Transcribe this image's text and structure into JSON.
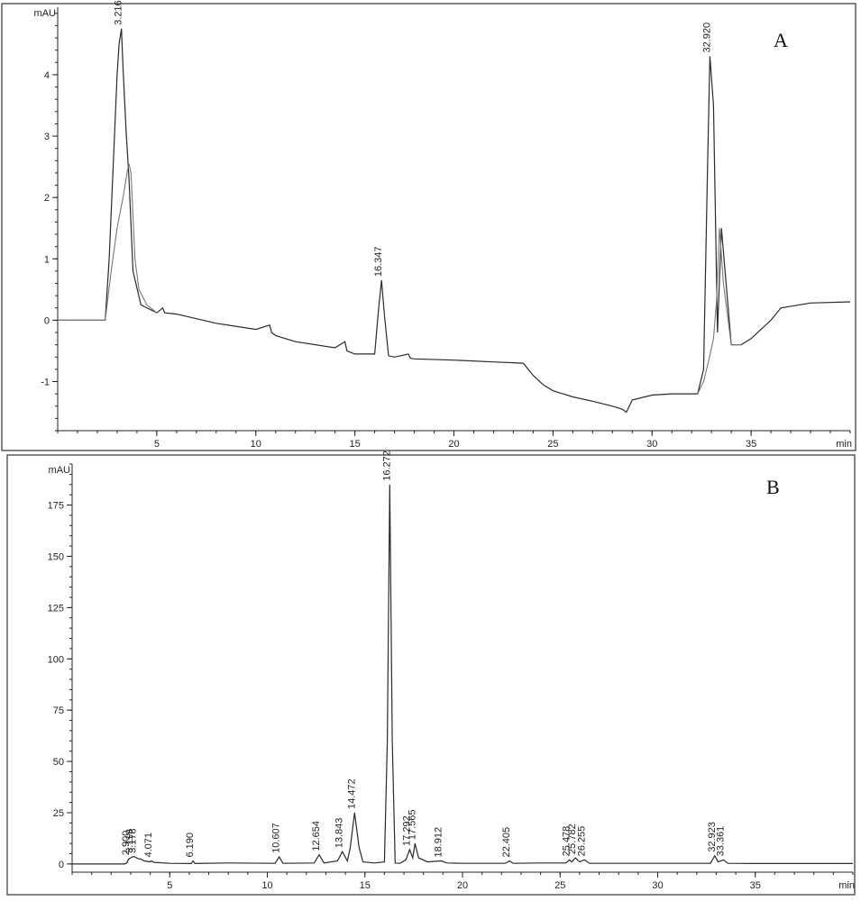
{
  "chart_data": [
    {
      "type": "line",
      "panel": "A",
      "ylabel": "mAU",
      "xlabel": "min",
      "xlim": [
        0,
        40
      ],
      "ylim": [
        -1.8,
        5.1
      ],
      "x_ticks": [
        5,
        10,
        15,
        20,
        25,
        30,
        35
      ],
      "y_ticks": [
        -1,
        0,
        1,
        2,
        3,
        4
      ],
      "grid": false,
      "series": [
        {
          "x": [
            0,
            2.4,
            2.6,
            2.8,
            3.0,
            3.1,
            3.216,
            3.3,
            3.45,
            3.6,
            3.8,
            4.2,
            5,
            5.3,
            5.4,
            6,
            8,
            10,
            10.7,
            10.8,
            11,
            12,
            14,
            14.5,
            14.6,
            15,
            16.0,
            16.2,
            16.347,
            16.5,
            16.7,
            17,
            17.7,
            17.8,
            18,
            20,
            22,
            23.5,
            24,
            24.5,
            25,
            25.5,
            26,
            27,
            28,
            28.5,
            28.7,
            29,
            30,
            31,
            32.3,
            32.6,
            32.8,
            32.92,
            33.1,
            33.3,
            33.5,
            34,
            34.5,
            35,
            35.5,
            36,
            36.5,
            38,
            40
          ],
          "y": [
            0.0,
            0.0,
            1.0,
            2.5,
            4.0,
            4.5,
            4.75,
            4.1,
            3.1,
            2.3,
            0.8,
            0.25,
            0.12,
            0.2,
            0.12,
            0.1,
            -0.05,
            -0.15,
            -0.08,
            -0.2,
            -0.25,
            -0.35,
            -0.45,
            -0.35,
            -0.5,
            -0.55,
            -0.55,
            0.2,
            0.65,
            0.05,
            -0.58,
            -0.6,
            -0.55,
            -0.62,
            -0.63,
            -0.65,
            -0.68,
            -0.7,
            -0.9,
            -1.05,
            -1.15,
            -1.2,
            -1.25,
            -1.32,
            -1.4,
            -1.45,
            -1.5,
            -1.3,
            -1.22,
            -1.2,
            -1.2,
            -0.8,
            2.5,
            4.3,
            3.5,
            -0.2,
            1.5,
            -0.4,
            -0.4,
            -0.3,
            -0.15,
            0.0,
            0.2,
            0.28,
            0.3
          ]
        },
        {
          "x": [
            0,
            2.4,
            2.7,
            3.0,
            3.3,
            3.5,
            3.6,
            3.7,
            3.9,
            4.1,
            4.5,
            5
          ],
          "y": [
            0.0,
            0.0,
            0.8,
            1.5,
            2.0,
            2.4,
            2.55,
            2.4,
            1.0,
            0.5,
            0.25,
            0.12
          ]
        },
        {
          "x": [
            32.3,
            32.6,
            32.9,
            33.1,
            33.25,
            33.4,
            33.6,
            34.0,
            34.5
          ],
          "y": [
            -1.2,
            -1.0,
            -0.6,
            -0.3,
            0.3,
            1.5,
            0.6,
            -0.4,
            -0.4
          ]
        }
      ],
      "peak_labels": [
        {
          "x": 3.216,
          "y": 4.75,
          "label": "3.216"
        },
        {
          "x": 16.347,
          "y": 0.65,
          "label": "16.347"
        },
        {
          "x": 32.92,
          "y": 4.3,
          "label": "32.920"
        }
      ]
    },
    {
      "type": "line",
      "panel": "B",
      "ylabel": "mAU",
      "xlabel": "min",
      "xlim": [
        0,
        40
      ],
      "ylim": [
        -4,
        195
      ],
      "x_ticks": [
        5,
        10,
        15,
        20,
        25,
        30,
        35
      ],
      "y_ticks": [
        0,
        25,
        50,
        75,
        100,
        125,
        150,
        175
      ],
      "grid": false,
      "series": [
        {
          "x": [
            0,
            2.7,
            2.8,
            2.9,
            3.0,
            3.1,
            3.2,
            3.3,
            3.4,
            3.5,
            3.7,
            4.0,
            4.071,
            4.2,
            5,
            6.1,
            6.19,
            6.3,
            8,
            10.4,
            10.607,
            10.8,
            12.4,
            12.654,
            12.9,
            13.6,
            13.843,
            14.1,
            14.25,
            14.472,
            14.7,
            14.9,
            15.5,
            16.0,
            16.15,
            16.272,
            16.4,
            16.55,
            16.8,
            17.1,
            17.292,
            17.45,
            17.565,
            17.75,
            18.2,
            18.912,
            19.2,
            20,
            22.2,
            22.405,
            22.6,
            24,
            25.3,
            25.478,
            25.6,
            25.782,
            26.0,
            26.255,
            26.5,
            28,
            32.7,
            32.923,
            33.1,
            33.361,
            33.6,
            35,
            40
          ],
          "y": [
            0,
            0,
            0.5,
            2.5,
            3,
            3.5,
            3.5,
            3,
            2.5,
            2.5,
            1.5,
            1,
            1.5,
            0.8,
            0.3,
            0.2,
            1.5,
            0.2,
            0.5,
            0.3,
            3.5,
            0.3,
            0.5,
            4.5,
            0.5,
            1.5,
            6,
            1.5,
            8,
            25,
            8,
            1,
            0.5,
            1,
            60,
            185,
            60,
            0.5,
            0.3,
            2,
            7,
            3,
            10,
            3,
            1,
            1.5,
            0.5,
            0.3,
            0.3,
            1.5,
            0.3,
            0.5,
            0.5,
            2,
            1,
            3,
            1,
            2,
            0.3,
            0.3,
            0.3,
            4,
            1,
            2,
            0.3,
            0.2,
            0.2
          ]
        }
      ],
      "peak_labels": [
        {
          "x": 2.9,
          "y": 2.5,
          "label": "2.900"
        },
        {
          "x": 3.1,
          "y": 3.5,
          "label": "3.119"
        },
        {
          "x": 3.25,
          "y": 3.5,
          "label": "3.178"
        },
        {
          "x": 4.071,
          "y": 1.5,
          "label": "4.071"
        },
        {
          "x": 6.19,
          "y": 1.5,
          "label": "6.190"
        },
        {
          "x": 10.607,
          "y": 3.5,
          "label": "10.607"
        },
        {
          "x": 12.654,
          "y": 4.5,
          "label": "12.654"
        },
        {
          "x": 13.843,
          "y": 6,
          "label": "13.843"
        },
        {
          "x": 14.472,
          "y": 25,
          "label": "14.472"
        },
        {
          "x": 16.272,
          "y": 185,
          "label": "16.272"
        },
        {
          "x": 17.292,
          "y": 7,
          "label": "17.292"
        },
        {
          "x": 17.565,
          "y": 10,
          "label": "17.565"
        },
        {
          "x": 18.912,
          "y": 1.5,
          "label": "18.912"
        },
        {
          "x": 22.405,
          "y": 1.5,
          "label": "22.405"
        },
        {
          "x": 25.478,
          "y": 2,
          "label": "25.478"
        },
        {
          "x": 25.782,
          "y": 3,
          "label": "25.782"
        },
        {
          "x": 26.255,
          "y": 2,
          "label": "26.255"
        },
        {
          "x": 32.923,
          "y": 4,
          "label": "32.923"
        },
        {
          "x": 33.361,
          "y": 2,
          "label": "33.361"
        }
      ]
    }
  ]
}
